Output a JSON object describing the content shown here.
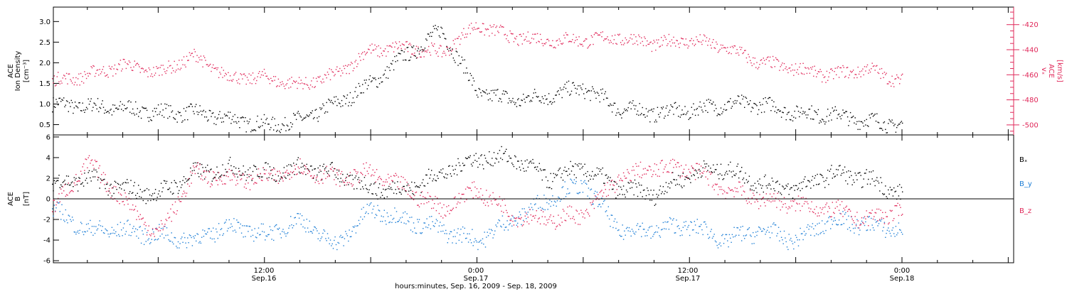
{
  "chart_data": [
    {
      "type": "scatter",
      "panel": "top",
      "left_axis": {
        "label_lines": [
          "ACE",
          "Ion Density"
        ],
        "unit": "[cm⁻³]",
        "ylim": [
          0.25,
          3.35
        ],
        "ticks": [
          "0.5",
          "1.0",
          "1.5",
          "2.0",
          "2.5",
          "3.0"
        ],
        "tick_values": [
          0.5,
          1.0,
          1.5,
          2.0,
          2.5,
          3.0
        ]
      },
      "right_axis": {
        "label_lines": [
          "ACE",
          "vₓ"
        ],
        "unit": "[km/s]",
        "ylim": [
          -508,
          -406
        ],
        "ticks": [
          "-420",
          "-440",
          "-460",
          "-480",
          "-500"
        ],
        "tick_values": [
          -420,
          -440,
          -460,
          -480,
          -500
        ],
        "color": "#e0285a"
      },
      "x_hours": [
        0,
        2,
        4,
        6,
        8,
        10,
        12,
        14,
        16,
        18,
        20,
        22,
        24,
        26,
        28,
        30,
        32,
        34,
        36,
        38,
        40,
        42,
        44,
        46,
        48
      ],
      "series": [
        {
          "axis": "left",
          "color": "#000000",
          "values": [
            1.0,
            0.95,
            0.9,
            0.8,
            0.8,
            0.65,
            0.5,
            0.6,
            1.0,
            1.5,
            2.2,
            2.8,
            1.3,
            1.1,
            1.2,
            1.4,
            0.9,
            0.8,
            0.85,
            1.0,
            1.0,
            0.8,
            0.75,
            0.6,
            0.5
          ]
        },
        {
          "axis": "right",
          "color": "#e0285a",
          "values": [
            -465,
            -460,
            -452,
            -458,
            -445,
            -462,
            -462,
            -468,
            -460,
            -440,
            -438,
            -442,
            -420,
            -430,
            -432,
            -432,
            -430,
            -435,
            -432,
            -438,
            -450,
            -455,
            -460,
            -455,
            -465
          ]
        }
      ]
    },
    {
      "type": "scatter",
      "panel": "bottom",
      "left_axis": {
        "label_lines": [
          "ACE",
          "B"
        ],
        "unit": "[nT]",
        "ylim": [
          -6.2,
          6.2
        ],
        "ticks": [
          "6",
          "4",
          "2",
          "0",
          "-2",
          "-4",
          "-6"
        ],
        "tick_values": [
          6,
          4,
          2,
          0,
          -2,
          -4,
          -6
        ]
      },
      "zero_line": true,
      "x_hours": [
        0,
        2,
        4,
        6,
        8,
        10,
        12,
        14,
        16,
        18,
        20,
        22,
        24,
        26,
        28,
        30,
        32,
        34,
        36,
        38,
        40,
        42,
        44,
        46,
        48
      ],
      "series": [
        {
          "name": "Bₓ",
          "color": "#000000",
          "values": [
            1.5,
            2.0,
            1.0,
            0.5,
            2.5,
            3.0,
            2.5,
            3.0,
            2.5,
            1.0,
            1.0,
            2.5,
            4.0,
            4.0,
            2.0,
            3.0,
            1.0,
            0.5,
            2.5,
            3.0,
            1.5,
            1.0,
            2.5,
            2.0,
            0.5
          ]
        },
        {
          "name": "B_y",
          "color": "#1f7fd6",
          "values": [
            -1.0,
            -3.0,
            -3.0,
            -3.5,
            -4.0,
            -2.5,
            -3.5,
            -2.0,
            -4.5,
            -1.0,
            -2.0,
            -3.0,
            -4.0,
            -2.0,
            0.0,
            1.5,
            -3.0,
            -3.0,
            -2.5,
            -4.0,
            -3.0,
            -4.0,
            -2.0,
            -2.5,
            -3.0
          ]
        },
        {
          "name": "B_z",
          "color": "#e0285a",
          "values": [
            -1.0,
            3.5,
            0.0,
            -3.5,
            2.5,
            2.0,
            2.0,
            3.0,
            2.0,
            2.5,
            1.0,
            -1.0,
            1.0,
            -1.5,
            -2.0,
            -1.5,
            2.0,
            3.0,
            3.0,
            1.0,
            0.0,
            -0.5,
            -1.0,
            -2.0,
            -1.0
          ]
        }
      ]
    }
  ],
  "x_axis": {
    "tick_labels": [
      {
        "time": "12:00",
        "date": "Sep.16"
      },
      {
        "time": "0:00",
        "date": "Sep.17"
      },
      {
        "time": "12:00",
        "date": "Sep.17"
      },
      {
        "time": "0:00",
        "date": "Sep.18"
      }
    ],
    "title": "hours:minutes, Sep. 16, 2009 - Sep. 18, 2009"
  },
  "legend": [
    "Bₓ",
    "B_y",
    "B_z"
  ],
  "colors": {
    "black": "#000000",
    "magenta": "#e0285a",
    "blue": "#1f7fd6"
  }
}
